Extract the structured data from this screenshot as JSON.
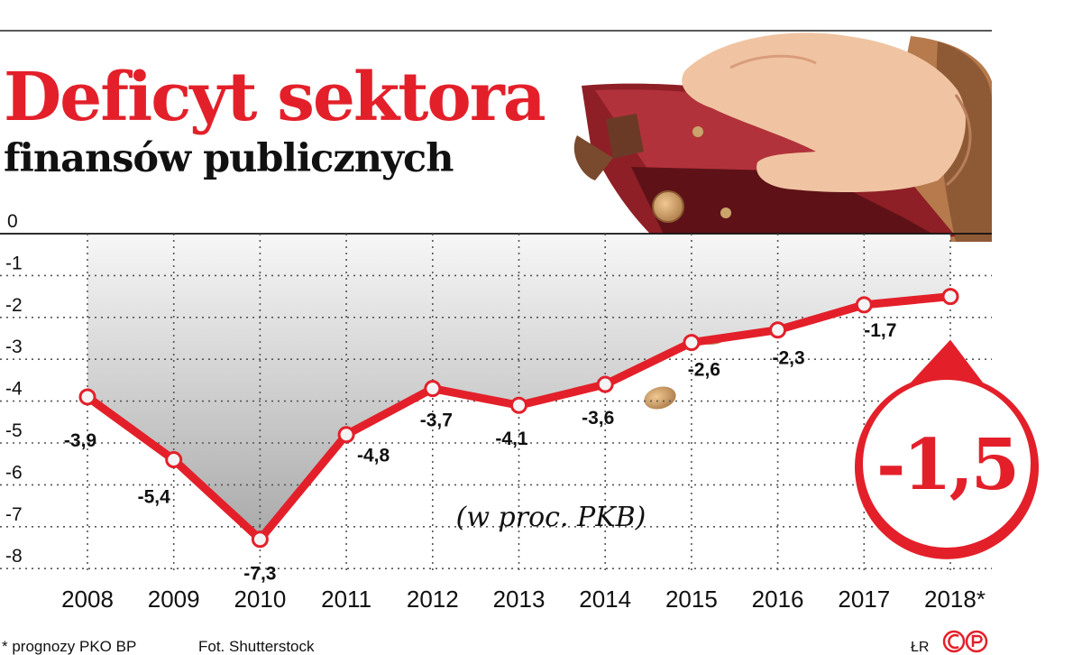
{
  "title": "Deficyt sektora",
  "subtitle": "finansów publicznych",
  "unit_note": "(w proc. PKB)",
  "footnote": "* prognozy PKO BP",
  "photo_credit": "Fot. Shutterstock",
  "author": "ŁR",
  "highlight_value": "-1,5",
  "chart_data": {
    "type": "area",
    "categories": [
      "2008",
      "2009",
      "2010",
      "2011",
      "2012",
      "2013",
      "2014",
      "2015",
      "2016",
      "2017",
      "2018*"
    ],
    "values": [
      -3.9,
      -5.4,
      -7.3,
      -4.8,
      -3.7,
      -4.1,
      -3.6,
      -2.6,
      -2.3,
      -1.7,
      -1.5
    ],
    "value_labels": [
      "-3,9",
      "-5,4",
      "-7,3",
      "-4,8",
      "-3,7",
      "-4,1",
      "-3,6",
      "-2,6",
      "-2,3",
      "-1,7",
      "-1,5"
    ],
    "y_ticks": [
      "0",
      "-1",
      "-2",
      "-3",
      "-4",
      "-5",
      "-6",
      "-7",
      "-8"
    ],
    "ylim": [
      -8,
      0
    ],
    "grid": true
  },
  "colors": {
    "line": "#e3202a",
    "title": "#e3202a",
    "grid": "#555555",
    "area_top": "#f7f7f7",
    "area_bottom": "#a9a9a9",
    "wallet": "#8e1f26"
  }
}
